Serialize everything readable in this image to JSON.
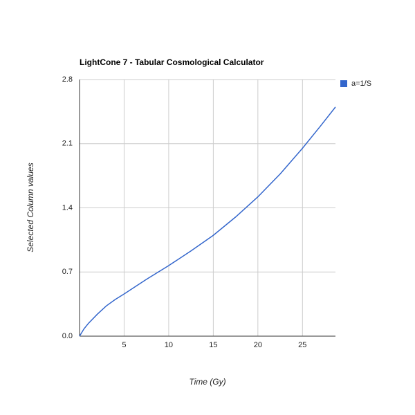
{
  "chart_data": {
    "type": "line",
    "title": "LightCone 7 - Tabular Cosmological Calculator",
    "x_label": "Time (Gy)",
    "y_label": "Selected Column values",
    "x": [
      0,
      0.5,
      1,
      2,
      3,
      4,
      5,
      7.5,
      10,
      12.5,
      15,
      17.5,
      20,
      22.5,
      25,
      27,
      28.7
    ],
    "series": [
      {
        "name": "a=1/S",
        "color": "#3366cc",
        "values": [
          0,
          0.08,
          0.14,
          0.24,
          0.33,
          0.4,
          0.46,
          0.62,
          0.77,
          0.93,
          1.1,
          1.3,
          1.52,
          1.77,
          2.05,
          2.29,
          2.5
        ]
      }
    ],
    "xlim": [
      0,
      28.7
    ],
    "xticks": [
      5,
      10,
      15,
      20,
      25
    ],
    "ylim": [
      0,
      2.8
    ],
    "yticks": [
      {
        "value": 0,
        "label": "0.0"
      },
      0.7,
      1.4,
      2.1,
      2.8
    ],
    "grid": true,
    "legend": "right"
  }
}
